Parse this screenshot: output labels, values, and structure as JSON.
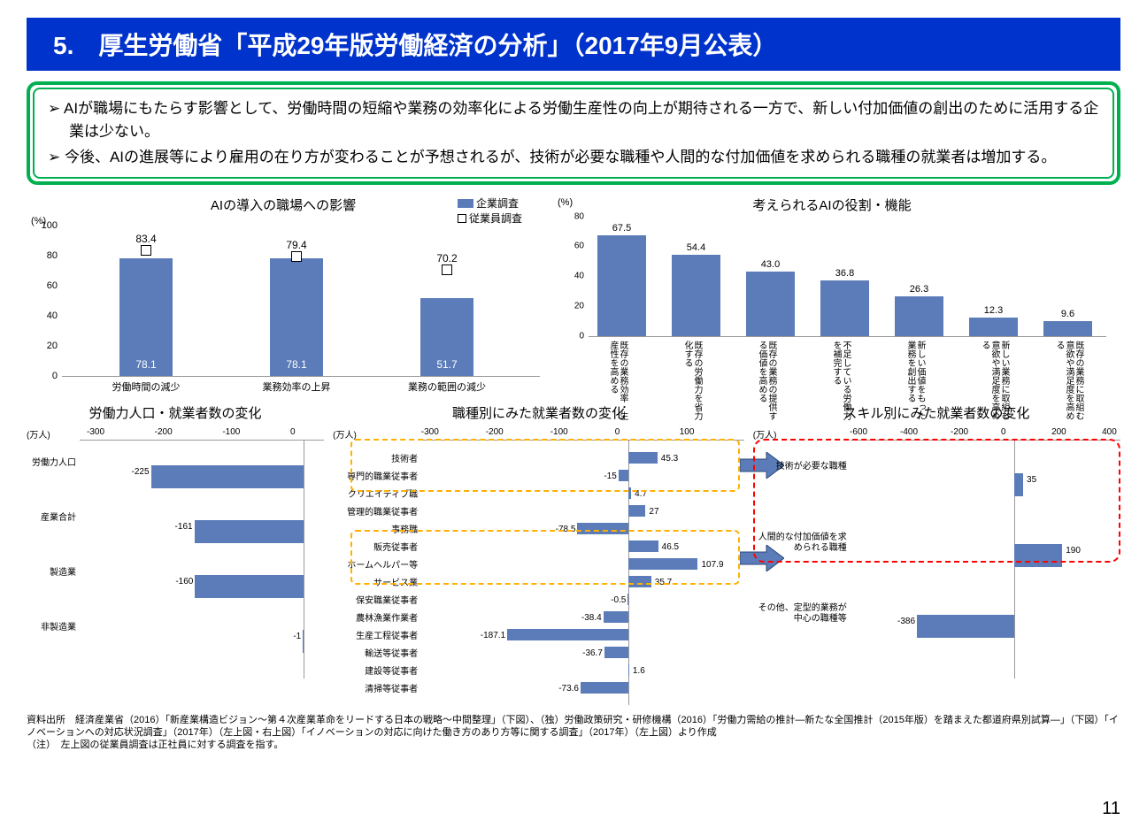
{
  "title": "5.　厚生労働省「平成29年版労働経済の分析」（2017年9月公表）",
  "page_number": "11",
  "summary": {
    "bullets": [
      "AIが職場にもたらす影響として、労働時間の短縮や業務の効率化による労働生産性の向上が期待される一方で、新しい付加価値の創出のために活用する企業は少ない。",
      "今後、AIの進展等により雇用の在り方が変わることが予想されるが、技術が必要な職種や人間的な付加価値を求められる職種の就業者は増加する。"
    ]
  },
  "colors": {
    "bar_blue": "#5b7cb8",
    "title_bg": "#0033cc",
    "border_green": "#00b050",
    "grid": "#999999"
  },
  "chart1": {
    "title": "AIの導入の職場への影響",
    "y_unit": "(%)",
    "ylim": [
      0,
      100
    ],
    "ytick_step": 20,
    "legend": {
      "series1": "企業調査",
      "series2": "従業員調査"
    },
    "categories": [
      "労働時間の減少",
      "業務効率の上昇",
      "業務の範囲の減少"
    ],
    "corporate": [
      78.1,
      78.1,
      51.7
    ],
    "employee": [
      83.4,
      79.4,
      70.2
    ]
  },
  "chart2": {
    "title": "考えられるAIの役割・機能",
    "y_unit": "(%)",
    "ylim": [
      0,
      80
    ],
    "ytick_step": 20,
    "categories": [
      "既存の業務効率・生産性を高める",
      "既存の労働力を省力化する",
      "既存の業務の提供する価値を高める",
      "不足している労働力を補完する",
      "新しい価値をもった業務を創出する",
      "新しい業務に取組む意欲や満足度を高める",
      "既存の業務に取組む意欲や満足度を高める"
    ],
    "values": [
      67.5,
      54.4,
      43.0,
      36.8,
      26.3,
      12.3,
      9.6
    ]
  },
  "chart3": {
    "title": "労働力人口・就業者数の変化",
    "x_unit": "(万人)",
    "xlim": [
      -330,
      30
    ],
    "xticks": [
      -300,
      -200,
      -100,
      0
    ],
    "categories": [
      "労働力人口",
      "産業合計",
      "製造業",
      "非製造業"
    ],
    "values": [
      -225,
      -161,
      -160,
      -1
    ]
  },
  "chart4": {
    "title": "職種別にみた就業者数の変化",
    "x_unit": "(万人)",
    "xlim": [
      -320,
      180
    ],
    "xticks": [
      -300,
      -200,
      -100,
      0,
      100
    ],
    "rows": [
      {
        "cat": "技術者",
        "val": 45.3
      },
      {
        "cat": "専門的職業従事者",
        "val": -15.0
      },
      {
        "cat": "クリエイティブ職",
        "val": 4.7
      },
      {
        "cat": "管理的職業従事者",
        "val": 27.0
      },
      {
        "cat": "事務職",
        "val": -78.5
      },
      {
        "cat": "販売従事者",
        "val": 46.5
      },
      {
        "cat": "ホームヘルパー等",
        "val": 107.9
      },
      {
        "cat": "サービス業",
        "val": 35.7
      },
      {
        "cat": "保安職業従事者",
        "val": -0.5
      },
      {
        "cat": "農林漁業作業者",
        "val": -38.4
      },
      {
        "cat": "生産工程従事者",
        "val": -187.1
      },
      {
        "cat": "輸送等従事者",
        "val": -36.7
      },
      {
        "cat": "建設等従事者",
        "val": 1.6
      },
      {
        "cat": "清掃等従事者",
        "val": -73.6
      }
    ]
  },
  "chart5": {
    "title": "スキル別にみた就業者数の変化",
    "x_unit": "(万人)",
    "xlim": [
      -650,
      420
    ],
    "xticks": [
      -600,
      -400,
      -200,
      0,
      200,
      400
    ],
    "rows": [
      {
        "cat": "技術が必要な職種",
        "val": 35
      },
      {
        "cat": "人間的な付加価値を求められる職種",
        "val": 190
      },
      {
        "cat": "その他、定型的業務が中心の職種等",
        "val": -386
      }
    ]
  },
  "footnote": {
    "line1": "資料出所　経済産業省（2016）「新産業構造ビジョン～第４次産業革命をリードする日本の戦略～中間整理」（下図）、（独）労働政策研究・研修機構（2016）「労働力需給の推計―新たな全国推計（2015年版）を踏まえた都道府県別試算―」（下図）「イノベーションへの対応状況調査」（2017年）（左上図・右上図）「イノベーションの対応に向けた働き方のあり方等に関する調査」（2017年）（左上図）より作成",
    "line2": "（注）　左上図の従業員調査は正社員に対する調査を指す。"
  }
}
